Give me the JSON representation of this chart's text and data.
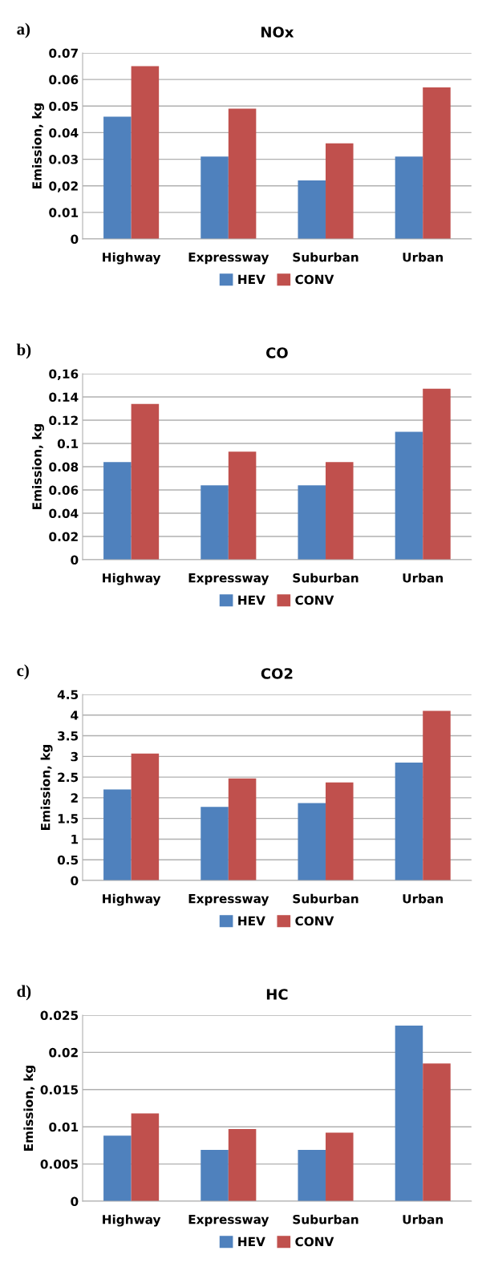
{
  "chart_data": [
    {
      "type": "bar",
      "title": "NOx",
      "annotations": [
        "a)"
      ],
      "ylabel": "Emission, kg",
      "categories": [
        "Highway",
        "Expressway",
        "Suburban",
        "Urban"
      ],
      "series": [
        {
          "name": "HEV",
          "color": "#4f81bd",
          "values": [
            0.046,
            0.031,
            0.022,
            0.031
          ]
        },
        {
          "name": "CONV",
          "color": "#c0504d",
          "values": [
            0.065,
            0.049,
            0.036,
            0.057
          ]
        }
      ],
      "ylim": [
        0,
        0.07
      ],
      "yticks": [
        0,
        0.01,
        {
          "value": 0.02,
          "label": "0,02"
        },
        0.03,
        0.04,
        0.05,
        0.06,
        0.07
      ],
      "grid": "y",
      "legend": "bottom"
    },
    {
      "type": "bar",
      "title": "CO",
      "annotations": [
        "b)"
      ],
      "ylabel": "Emission, kg",
      "categories": [
        "Highway",
        "Expressway",
        "Suburban",
        "Urban"
      ],
      "series": [
        {
          "name": "HEV",
          "color": "#4f81bd",
          "values": [
            0.084,
            0.064,
            0.064,
            0.11
          ]
        },
        {
          "name": "CONV",
          "color": "#c0504d",
          "values": [
            0.134,
            0.093,
            0.084,
            0.147
          ]
        }
      ],
      "ylim": [
        0,
        0.16
      ],
      "yticks": [
        0,
        0.02,
        0.04,
        0.06,
        0.08,
        0.1,
        0.12,
        0.14,
        {
          "value": 0.16,
          "label": "0,16"
        }
      ],
      "grid": "y",
      "legend": "bottom"
    },
    {
      "type": "bar",
      "title": "CO2",
      "annotations": [
        "c)"
      ],
      "ylabel": "Emission, kg",
      "categories": [
        "Highway",
        "Expressway",
        "Suburban",
        "Urban"
      ],
      "series": [
        {
          "name": "HEV",
          "color": "#4f81bd",
          "values": [
            2.2,
            1.78,
            1.87,
            2.85
          ]
        },
        {
          "name": "CONV",
          "color": "#c0504d",
          "values": [
            3.07,
            2.47,
            2.37,
            4.1
          ]
        }
      ],
      "ylim": [
        0,
        4.5
      ],
      "yticks": [
        0,
        0.5,
        1,
        1.5,
        2,
        2.5,
        3,
        3.5,
        4,
        4.5
      ],
      "grid": "y",
      "legend": "bottom"
    },
    {
      "type": "bar",
      "title": "HC",
      "annotations": [
        "d)"
      ],
      "ylabel": "Emission, kg",
      "categories": [
        "Highway",
        "Expressway",
        "Suburban",
        "Urban"
      ],
      "series": [
        {
          "name": "HEV",
          "color": "#4f81bd",
          "values": [
            0.0088,
            0.0069,
            0.0069,
            0.0236
          ]
        },
        {
          "name": "CONV",
          "color": "#c0504d",
          "values": [
            0.0118,
            0.0097,
            0.0092,
            0.0185
          ]
        }
      ],
      "ylim": [
        0,
        0.025
      ],
      "yticks": [
        0,
        0.005,
        0.01,
        0.015,
        0.02,
        0.025
      ],
      "grid": "y",
      "legend": "bottom"
    }
  ]
}
